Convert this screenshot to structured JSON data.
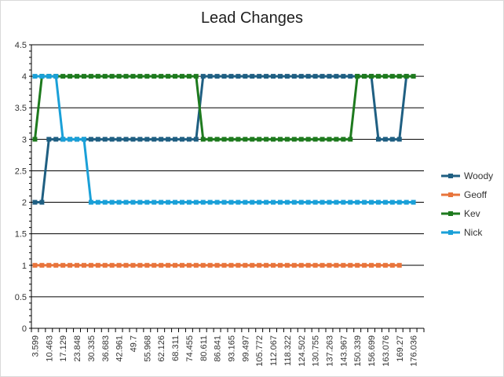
{
  "chart_data": {
    "type": "line",
    "title": "Lead Changes",
    "xlabel": "",
    "ylabel": "",
    "ylim": [
      0,
      4.5
    ],
    "y_ticks": [
      "0",
      "0.5",
      "1",
      "1.5",
      "2",
      "2.5",
      "3",
      "3.5",
      "4",
      "4.5"
    ],
    "x_tick_labels": [
      "3.599",
      "10.463",
      "17.129",
      "23.848",
      "30.335",
      "36.683",
      "42.961",
      "49.7",
      "55.968",
      "62.126",
      "68.311",
      "74.455",
      "80.611",
      "86.841",
      "93.165",
      "99.497",
      "105.772",
      "112.067",
      "118.322",
      "124.502",
      "130.755",
      "137.263",
      "143.967",
      "150.339",
      "156.699",
      "163.076",
      "169.27",
      "176.036"
    ],
    "points_per_tick": 2,
    "grid": true,
    "legend_position": "right",
    "series": [
      {
        "name": "Woody",
        "color": "#1f5f82",
        "values": [
          2,
          2,
          3,
          3,
          3,
          3,
          3,
          3,
          3,
          3,
          3,
          3,
          3,
          3,
          3,
          3,
          3,
          3,
          3,
          3,
          3,
          3,
          3,
          3,
          4,
          4,
          4,
          4,
          4,
          4,
          4,
          4,
          4,
          4,
          4,
          4,
          4,
          4,
          4,
          4,
          4,
          4,
          4,
          4,
          4,
          4,
          4,
          4,
          4,
          3,
          3,
          3,
          3,
          4
        ]
      },
      {
        "name": "Geoff",
        "color": "#e8743b",
        "values": [
          1,
          1,
          1,
          1,
          1,
          1,
          1,
          1,
          1,
          1,
          1,
          1,
          1,
          1,
          1,
          1,
          1,
          1,
          1,
          1,
          1,
          1,
          1,
          1,
          1,
          1,
          1,
          1,
          1,
          1,
          1,
          1,
          1,
          1,
          1,
          1,
          1,
          1,
          1,
          1,
          1,
          1,
          1,
          1,
          1,
          1,
          1,
          1,
          1,
          1,
          1,
          1,
          1
        ]
      },
      {
        "name": "Kev",
        "color": "#1e7a1e",
        "values": [
          3,
          4,
          4,
          4,
          4,
          4,
          4,
          4,
          4,
          4,
          4,
          4,
          4,
          4,
          4,
          4,
          4,
          4,
          4,
          4,
          4,
          4,
          4,
          4,
          3,
          3,
          3,
          3,
          3,
          3,
          3,
          3,
          3,
          3,
          3,
          3,
          3,
          3,
          3,
          3,
          3,
          3,
          3,
          3,
          3,
          3,
          4,
          4,
          4,
          4,
          4,
          4,
          4,
          4,
          4
        ]
      },
      {
        "name": "Nick",
        "color": "#1aa0d8",
        "values": [
          4,
          4,
          4,
          4,
          3,
          3,
          3,
          3,
          2,
          2,
          2,
          2,
          2,
          2,
          2,
          2,
          2,
          2,
          2,
          2,
          2,
          2,
          2,
          2,
          2,
          2,
          2,
          2,
          2,
          2,
          2,
          2,
          2,
          2,
          2,
          2,
          2,
          2,
          2,
          2,
          2,
          2,
          2,
          2,
          2,
          2,
          2,
          2,
          2,
          2,
          2,
          2,
          2,
          2,
          2
        ]
      }
    ]
  }
}
